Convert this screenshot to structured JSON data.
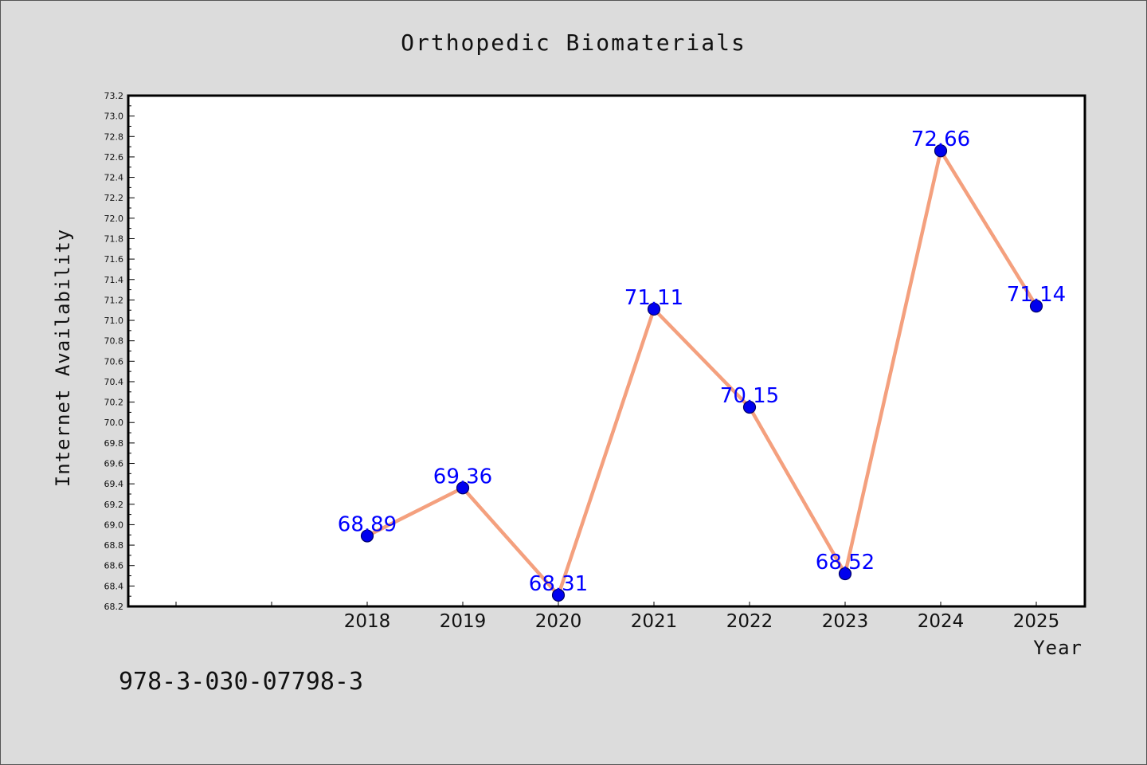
{
  "chart_data": {
    "type": "line",
    "title": "Orthopedic Biomaterials",
    "xlabel": "Year",
    "ylabel": "Internet Availability",
    "categories": [
      "2018",
      "2019",
      "2020",
      "2021",
      "2022",
      "2023",
      "2024",
      "2025"
    ],
    "x_slots_before_data": 2,
    "series": [
      {
        "values": [
          68.89,
          69.36,
          68.31,
          71.11,
          70.15,
          68.52,
          72.66,
          71.14
        ],
        "labels": [
          "68.89",
          "69.36",
          "68.31",
          "71.11",
          "70.15",
          "68.52",
          "72.66",
          "71.14"
        ]
      }
    ],
    "ylim": [
      68.2,
      73.2
    ],
    "yticks": [
      "68.2",
      "68.4",
      "68.6",
      "68.8",
      "69.0",
      "69.2",
      "69.4",
      "69.6",
      "69.8",
      "70.0",
      "70.2",
      "70.4",
      "70.6",
      "70.8",
      "71.0",
      "71.2",
      "71.4",
      "71.6",
      "71.8",
      "72.0",
      "72.2",
      "72.4",
      "72.6",
      "72.8",
      "73.0",
      "73.2"
    ],
    "grid": false,
    "colors": {
      "line": "#f4a07e",
      "marker": "#0000ee",
      "marker_edge": "#000066",
      "data_label": "#0000ff",
      "plot_background": "#ffffff",
      "figure_background": "#dcdcdc"
    }
  },
  "footer": {
    "isbn": "978-3-030-07798-3"
  }
}
